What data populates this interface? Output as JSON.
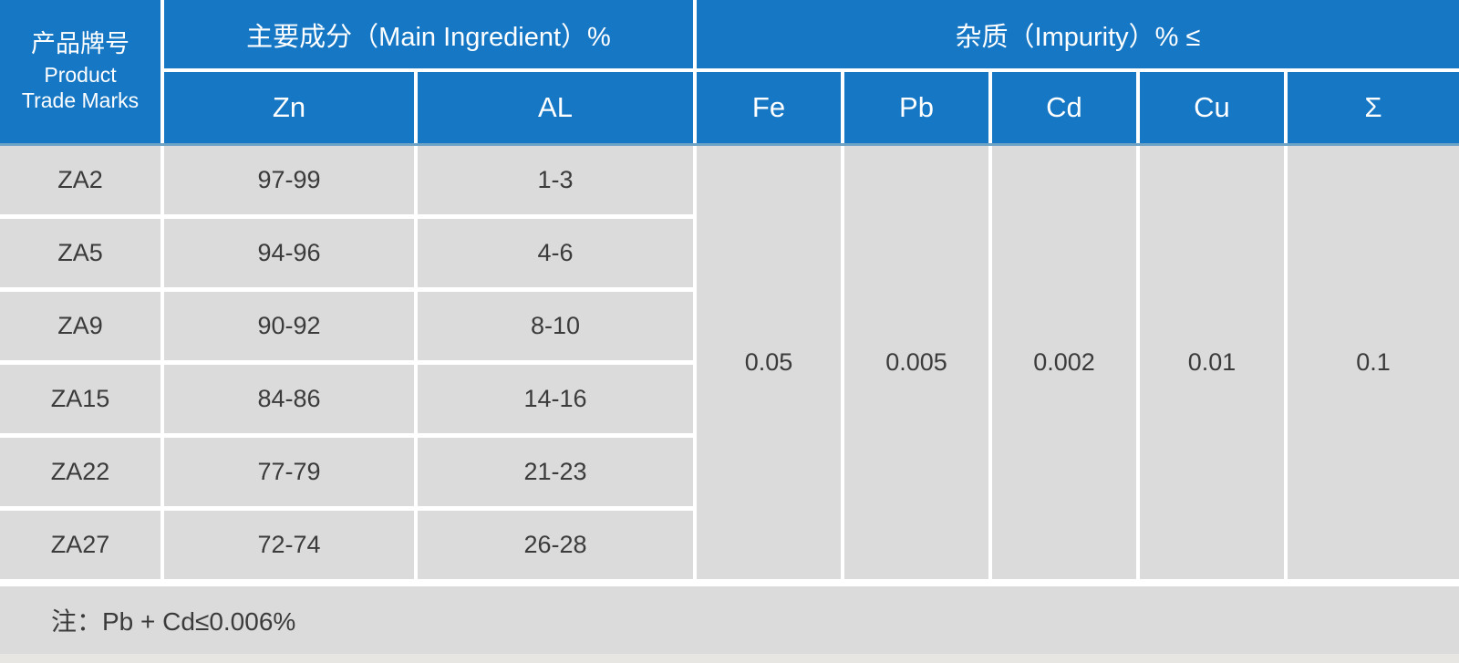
{
  "chart_data": {
    "type": "table",
    "title": "",
    "header": {
      "product_col_zh": "产品牌号",
      "product_col_en": [
        "Product",
        "Trade Marks"
      ],
      "groups": [
        {
          "label": "主要成分（Main Ingredient）%",
          "columns": [
            "Zn",
            "AL"
          ]
        },
        {
          "label": "杂质（Impurity）% ≤",
          "columns": [
            "Fe",
            "Pb",
            "Cd",
            "Cu",
            "Σ"
          ]
        }
      ]
    },
    "rows": [
      {
        "trade_mark": "ZA2",
        "zn": "97-99",
        "al": "1-3"
      },
      {
        "trade_mark": "ZA5",
        "zn": "94-96",
        "al": "4-6"
      },
      {
        "trade_mark": "ZA9",
        "zn": "90-92",
        "al": "8-10"
      },
      {
        "trade_mark": "ZA15",
        "zn": "84-86",
        "al": "14-16"
      },
      {
        "trade_mark": "ZA22",
        "zn": "77-79",
        "al": "21-23"
      },
      {
        "trade_mark": "ZA27",
        "zn": "72-74",
        "al": "26-28"
      }
    ],
    "impurity_max": {
      "Fe": "0.05",
      "Pb": "0.005",
      "Cd": "0.002",
      "Cu": "0.01",
      "Σ": "0.1"
    },
    "note": "注：Pb + Cd≤0.006%",
    "layout_hints": {
      "impurity_cells_merged_across_all_rows": true,
      "grid": "white gaps between gray cells"
    }
  },
  "colors": {
    "header_blue": "#1677c5",
    "cell_gray": "#dbdbdb",
    "header_text": "#ffffff",
    "body_text": "#3b3b3b"
  }
}
